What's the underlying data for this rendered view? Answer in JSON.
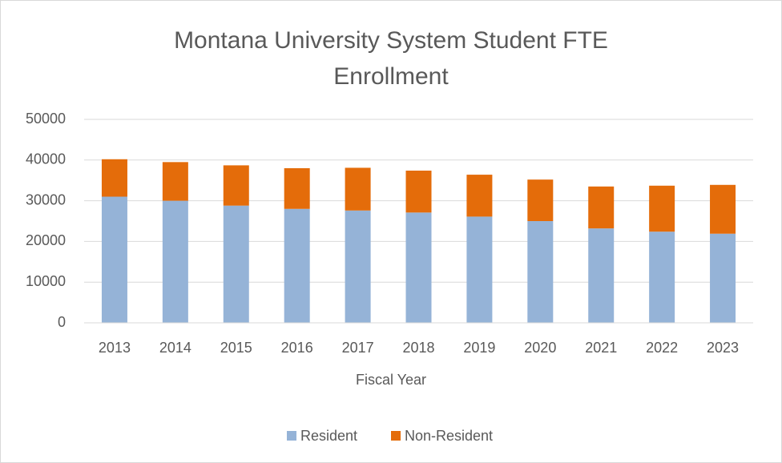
{
  "chart_data": {
    "type": "stacked_bar",
    "title": "Montana University System Student FTE Enrollment",
    "x_label": "Fiscal Year",
    "categories": [
      "2013",
      "2014",
      "2015",
      "2016",
      "2017",
      "2018",
      "2019",
      "2020",
      "2021",
      "2022",
      "2023"
    ],
    "series": [
      {
        "name": "Resident",
        "color": "#95b3d7",
        "values": [
          31000,
          30000,
          28800,
          28000,
          27600,
          27100,
          26100,
          25000,
          23200,
          22400,
          21900
        ]
      },
      {
        "name": "Non-Resident",
        "color": "#e46c0a",
        "values": [
          9200,
          9500,
          9900,
          10000,
          10500,
          10300,
          10300,
          10200,
          10300,
          11300,
          12000
        ]
      }
    ],
    "ylim": [
      0,
      50000
    ],
    "yticks": [
      0,
      10000,
      20000,
      30000,
      40000,
      50000
    ],
    "grid": true,
    "legend": "bottom"
  }
}
